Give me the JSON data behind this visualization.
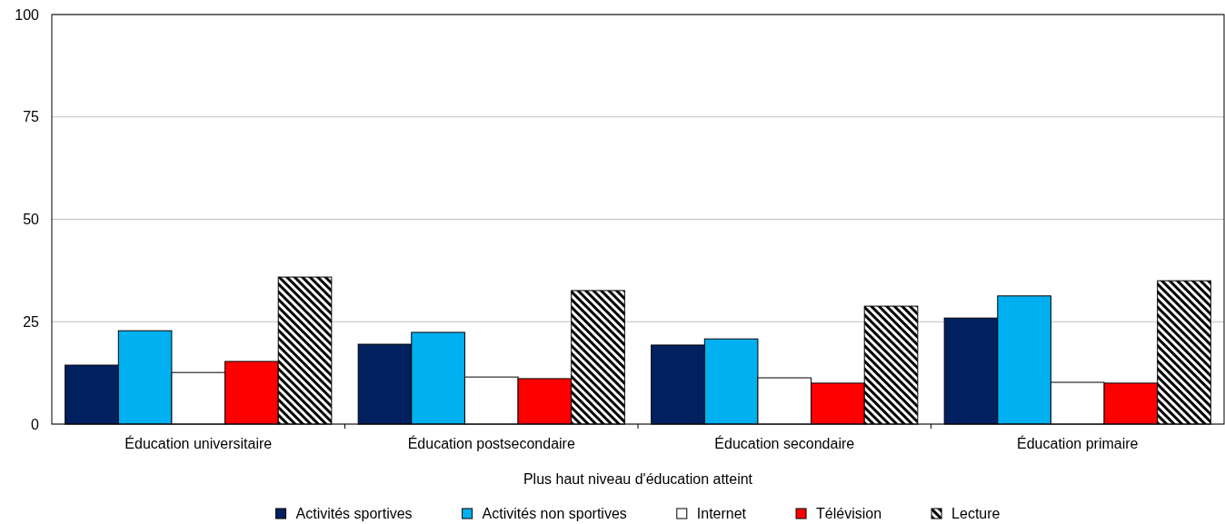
{
  "chart_data": {
    "type": "bar",
    "xlabel": "Plus haut niveau d'éducation atteint",
    "categories": [
      "Éducation universitaire",
      "Éducation postsecondaire",
      "Éducation secondaire",
      "Éducation primaire"
    ],
    "series": [
      {
        "name": "Activités sportives",
        "color": "#002060",
        "values": [
          14.4,
          19.5,
          19.3,
          25.9
        ]
      },
      {
        "name": "Activités non sportives",
        "color": "#00b0f0",
        "values": [
          22.8,
          22.4,
          20.8,
          31.3
        ]
      },
      {
        "name": "Internet",
        "color": "#ffffff",
        "values": [
          12.6,
          11.5,
          11.3,
          10.2
        ]
      },
      {
        "name": "Télévision",
        "color": "#ff0000",
        "values": [
          15.3,
          11.1,
          10.0,
          10.0
        ]
      },
      {
        "name": "Lecture",
        "color": "#000000",
        "values": [
          35.9,
          32.6,
          28.8,
          35.0
        ]
      }
    ],
    "ylim": [
      0,
      100
    ],
    "yticks": [
      0,
      25,
      50,
      75,
      100
    ],
    "grid": "y",
    "legend": "bottom"
  }
}
